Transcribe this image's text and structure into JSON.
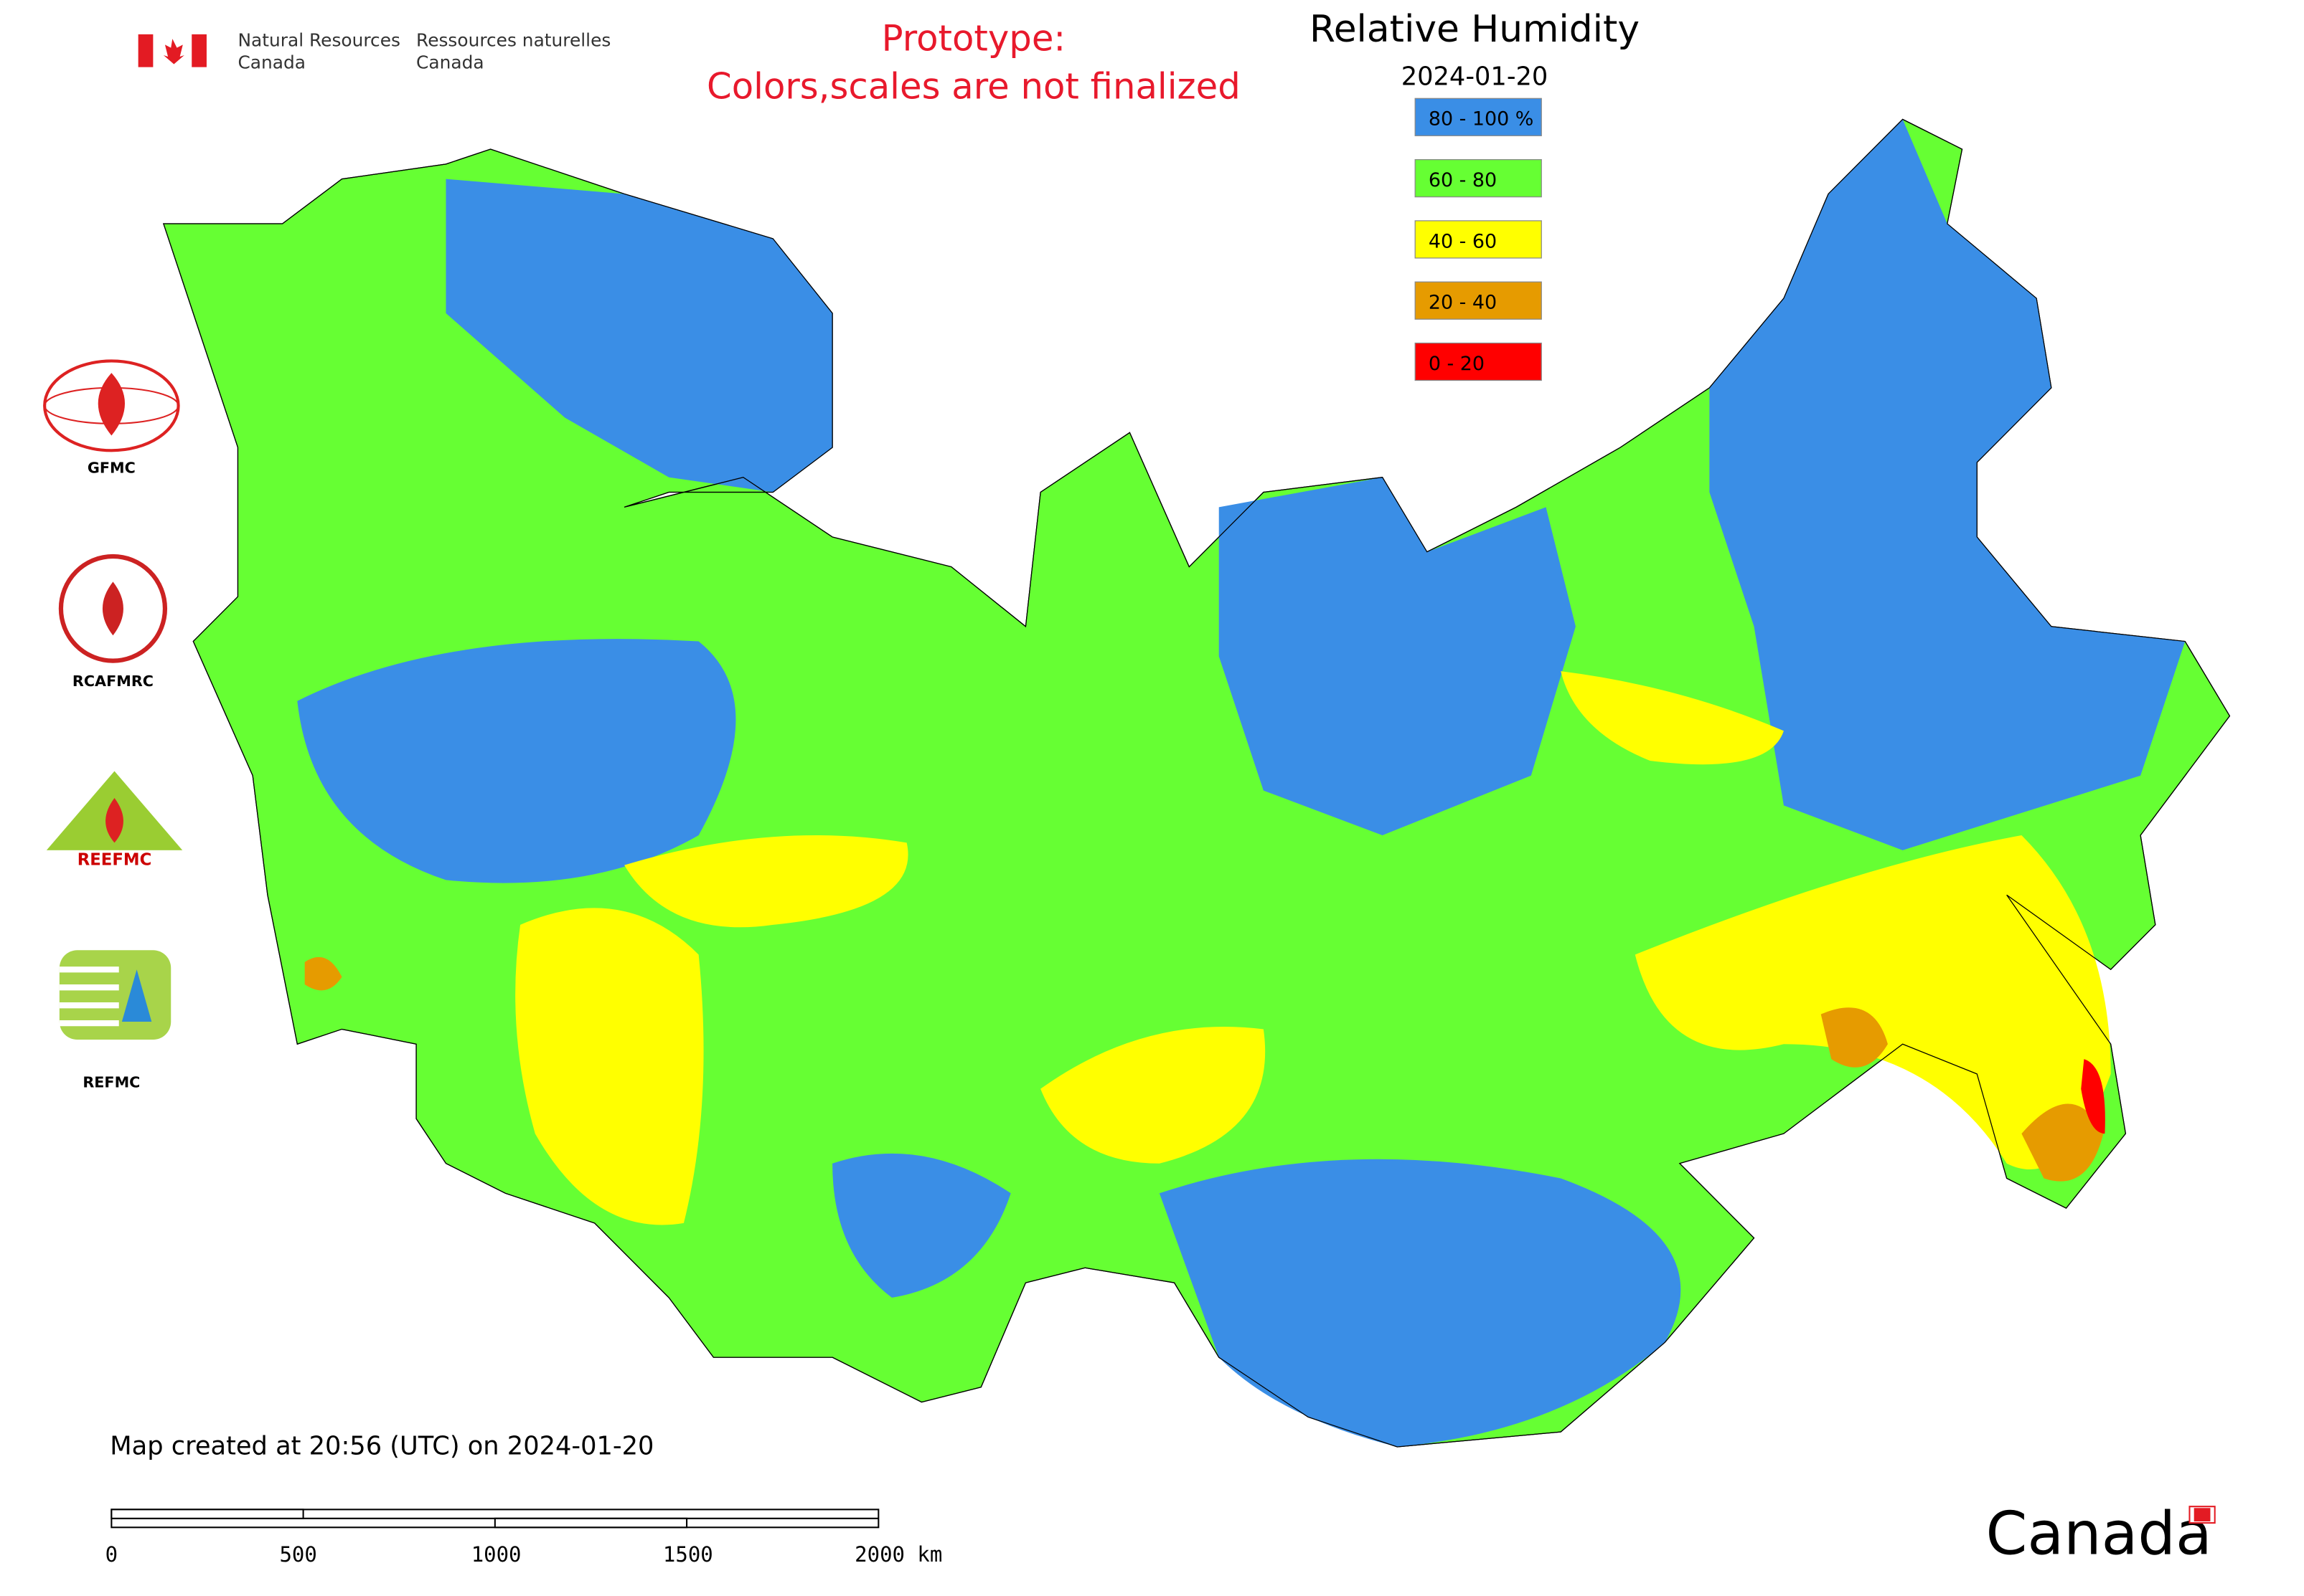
{
  "header": {
    "agency_en": [
      "Natural Resources",
      "Canada"
    ],
    "agency_fr": [
      "Ressources naturelles",
      "Canada"
    ]
  },
  "notice": [
    "Prototype:",
    "Colors,scales are not finalized"
  ],
  "legend": {
    "title": "Relative Humidity",
    "date": "2024-01-20",
    "items": [
      {
        "label": "80 - 100 %",
        "color": "#3a8ee6"
      },
      {
        "label": "60 - 80",
        "color": "#66ff33"
      },
      {
        "label": "40 - 60",
        "color": "#ffff00"
      },
      {
        "label": "20 - 40",
        "color": "#e69b00"
      },
      {
        "label": "0 - 20",
        "color": "#ff0000"
      }
    ]
  },
  "logos": [
    "GFMC",
    "RCAFMRC",
    "REEFMC",
    "REFMC"
  ],
  "footer": {
    "created": "Map created at 20:56 (UTC) on 2024-01-20",
    "scale_labels": [
      "0",
      "500",
      "1000",
      "1500",
      "2000 km"
    ]
  },
  "wordmark": "Canada"
}
